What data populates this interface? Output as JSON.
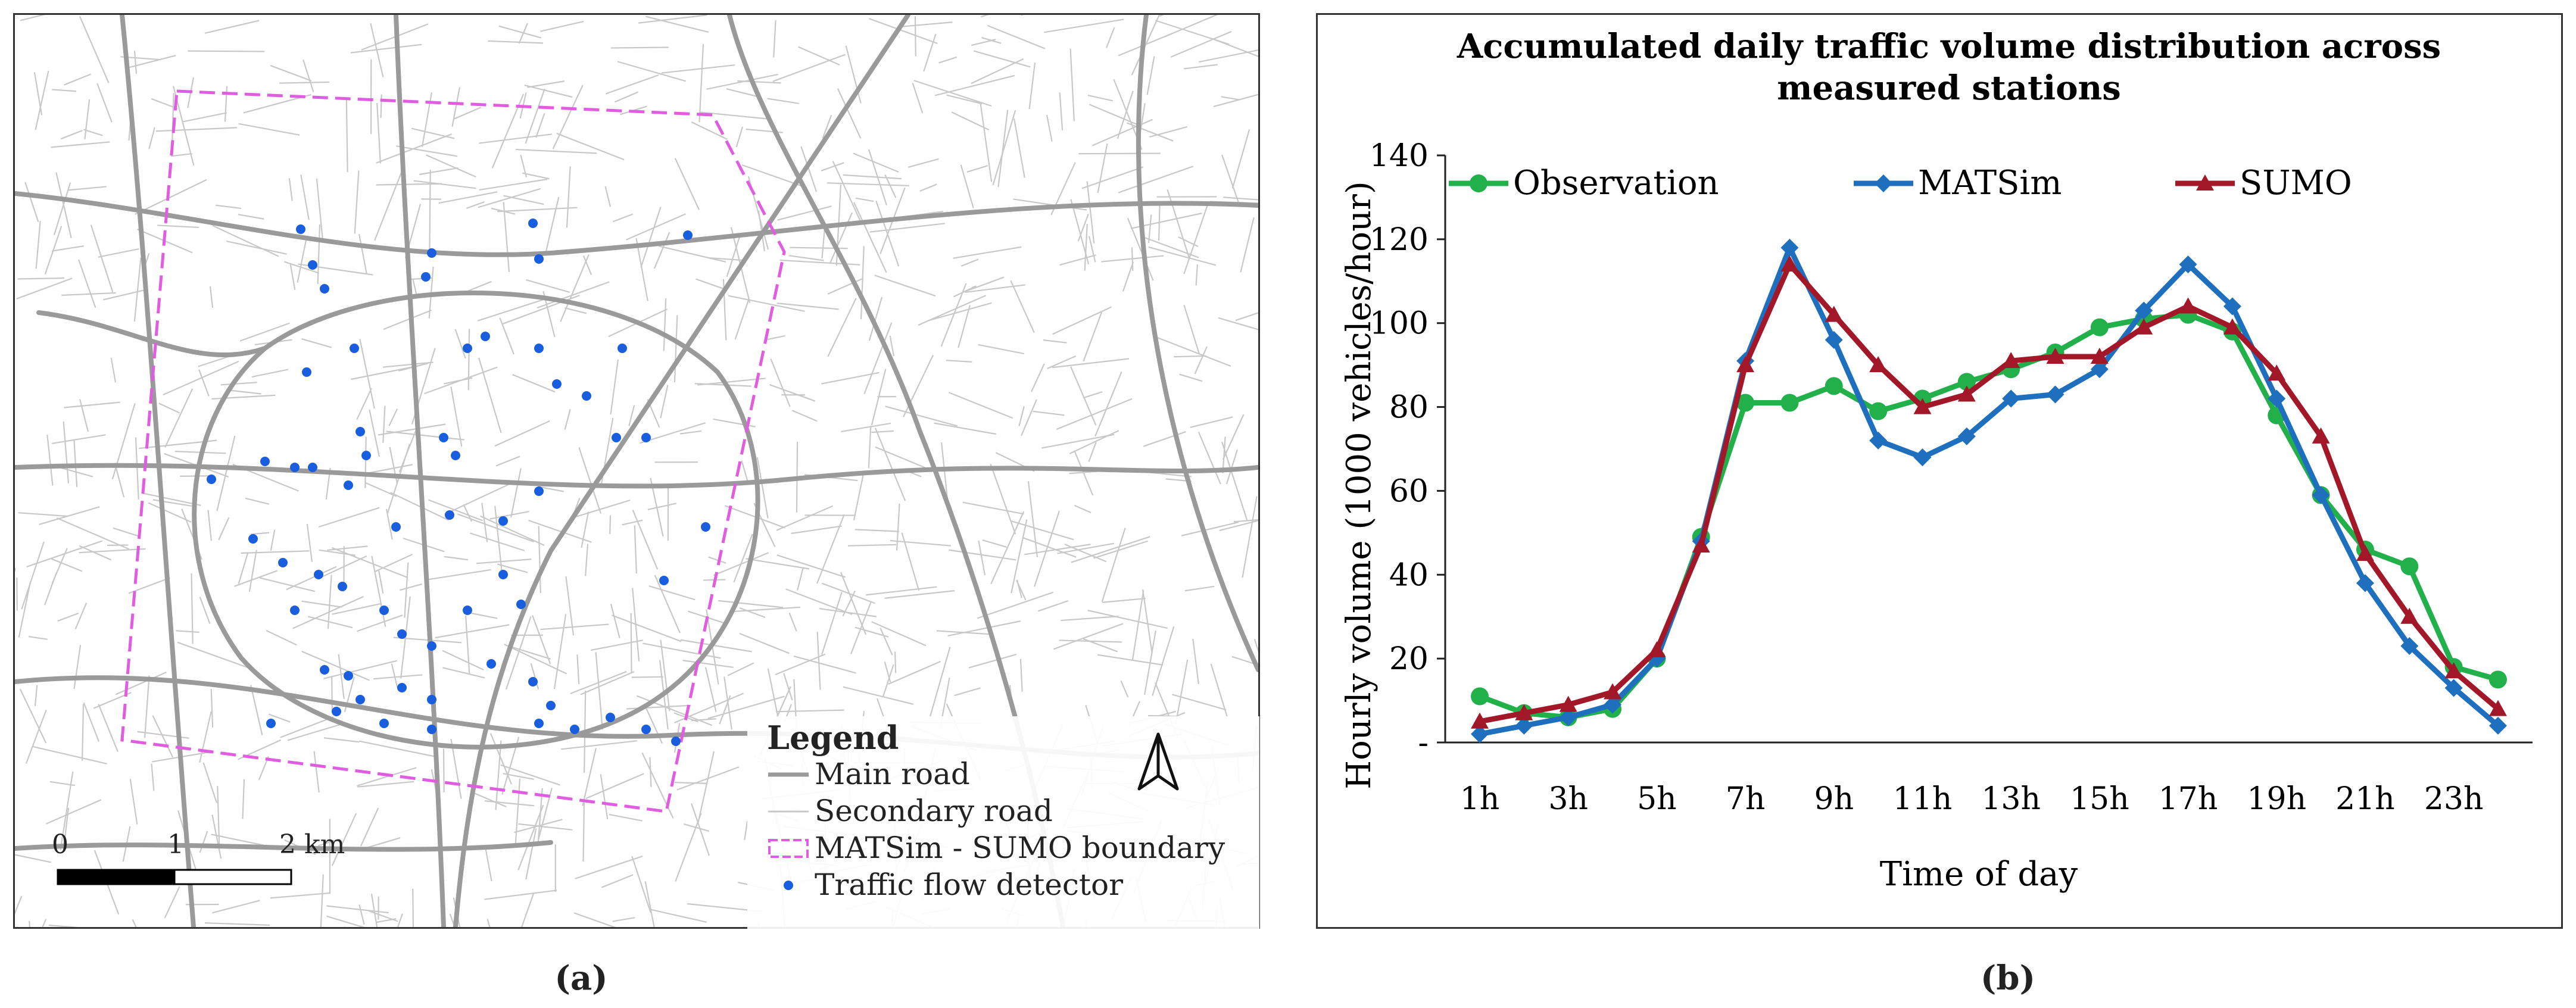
{
  "panel_a": {
    "caption": "(a)",
    "legend": {
      "title": "Legend",
      "items": [
        {
          "label": "Main road"
        },
        {
          "label": "Secondary road"
        },
        {
          "label": "MATSim - SUMO boundary"
        },
        {
          "label": "Traffic flow detector"
        }
      ]
    },
    "scale": {
      "labels": [
        "0",
        "1",
        "2 km"
      ]
    },
    "colors": {
      "main_road": "#9a9a9a",
      "secondary_road": "#c8c8c8",
      "boundary": "#e05ce0",
      "detector": "#1a5ee0"
    }
  },
  "panel_b": {
    "caption": "(b)"
  },
  "chart_data": {
    "type": "line",
    "title": "Accumulated daily traffic volume distribution across measured stations",
    "title_lines": [
      "Accumulated daily traffic volume distribution across",
      "measured stations"
    ],
    "xlabel": "Time of day",
    "ylabel": "Hourly volume (1000 vehicles/hour)",
    "ylim": [
      0,
      140
    ],
    "yticks": [
      0,
      20,
      40,
      60,
      80,
      100,
      120,
      140
    ],
    "ytick_labels": [
      "-",
      "20",
      "40",
      "60",
      "80",
      "100",
      "120",
      "140"
    ],
    "x": [
      1,
      2,
      3,
      4,
      5,
      6,
      7,
      8,
      9,
      10,
      11,
      12,
      13,
      14,
      15,
      16,
      17,
      18,
      19,
      20,
      21,
      22,
      23,
      24
    ],
    "xtick_labels": [
      "1h",
      "3h",
      "5h",
      "7h",
      "9h",
      "11h",
      "13h",
      "15h",
      "17h",
      "19h",
      "21h",
      "23h"
    ],
    "xtick_hours": [
      1,
      3,
      5,
      7,
      9,
      11,
      13,
      15,
      17,
      19,
      21,
      23
    ],
    "legend_position": "top",
    "series": [
      {
        "name": "Observation",
        "color": "#22b04b",
        "marker": "circle",
        "values": [
          11,
          7,
          6,
          8,
          20,
          49,
          81,
          81,
          85,
          79,
          82,
          86,
          89,
          93,
          99,
          101,
          102,
          98,
          78,
          59,
          46,
          42,
          18,
          15
        ]
      },
      {
        "name": "MATSim",
        "color": "#1f6fbf",
        "marker": "diamond",
        "values": [
          2,
          4,
          6,
          9,
          20,
          48,
          91,
          118,
          96,
          72,
          68,
          73,
          82,
          83,
          89,
          103,
          114,
          104,
          82,
          59,
          38,
          23,
          13,
          4
        ]
      },
      {
        "name": "SUMO",
        "color": "#a31829",
        "marker": "triangle",
        "values": [
          5,
          7,
          9,
          12,
          22,
          47,
          90,
          114,
          102,
          90,
          80,
          83,
          91,
          92,
          92,
          99,
          104,
          99,
          88,
          73,
          45,
          30,
          17,
          8
        ]
      }
    ]
  }
}
